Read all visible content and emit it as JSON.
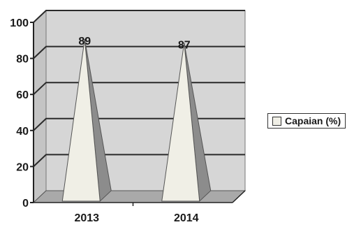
{
  "chart_data": {
    "type": "bar",
    "shape": "pyramid-3d",
    "title": "",
    "xlabel": "",
    "ylabel": "",
    "categories": [
      "2013",
      "2014"
    ],
    "series": [
      {
        "name": "Capaian (%)",
        "values": [
          89,
          87
        ]
      }
    ],
    "ylim": [
      0,
      100
    ],
    "yticks": [
      0,
      20,
      40,
      60,
      80,
      100
    ],
    "grid": true,
    "legend": "right",
    "colors": {
      "plot_back": "#d6d6d6",
      "plot_side": "#c4c4c4",
      "floor": "#a9a9a9",
      "pyramid_front": "#f0efe6",
      "pyramid_side": "#8c8c8c",
      "grid": "#2a2a2a"
    }
  }
}
